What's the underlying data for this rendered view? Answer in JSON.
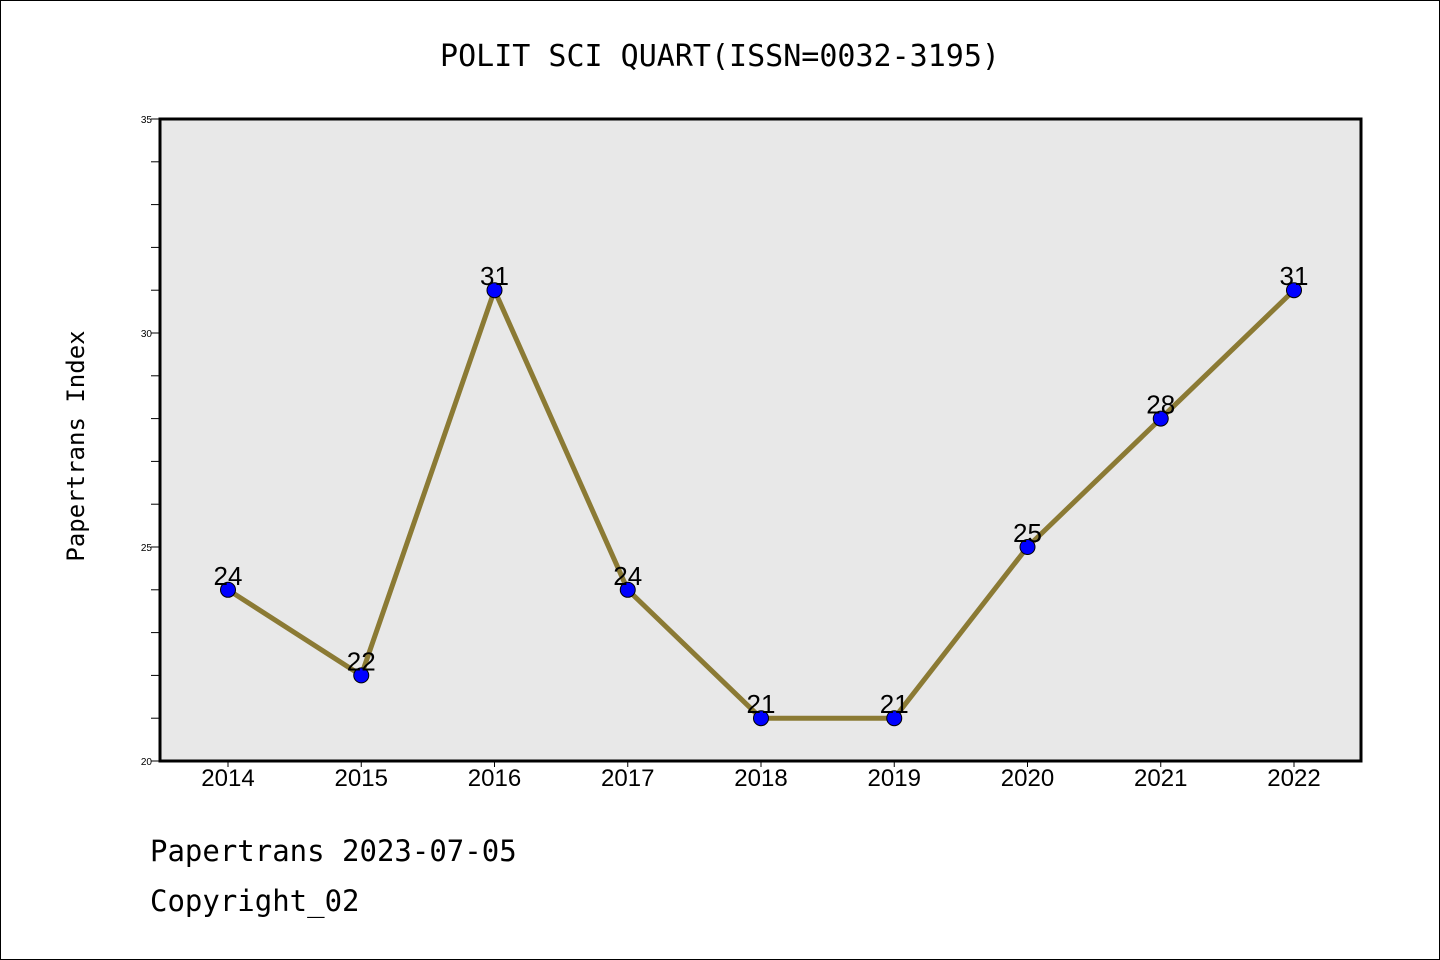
{
  "chart_data": {
    "type": "line",
    "title": "POLIT SCI QUART(ISSN=0032-3195)",
    "xlabel": "",
    "ylabel": "Papertrans Index",
    "categories": [
      "2014",
      "2015",
      "2016",
      "2017",
      "2018",
      "2019",
      "2020",
      "2021",
      "2022"
    ],
    "series": [
      {
        "values": [
          24,
          22,
          31,
          24,
          21,
          21,
          25,
          28,
          31
        ]
      }
    ],
    "ylim": [
      20,
      35
    ],
    "yticks": [
      "20",
      "25",
      "30",
      "35"
    ],
    "grid": false,
    "plot_background": "#e8e8e8",
    "line_color": "#8b7a34",
    "marker_color": "#0000ff"
  },
  "footer": {
    "line1": "Papertrans 2023-07-05",
    "line2": "Copyright_02"
  }
}
